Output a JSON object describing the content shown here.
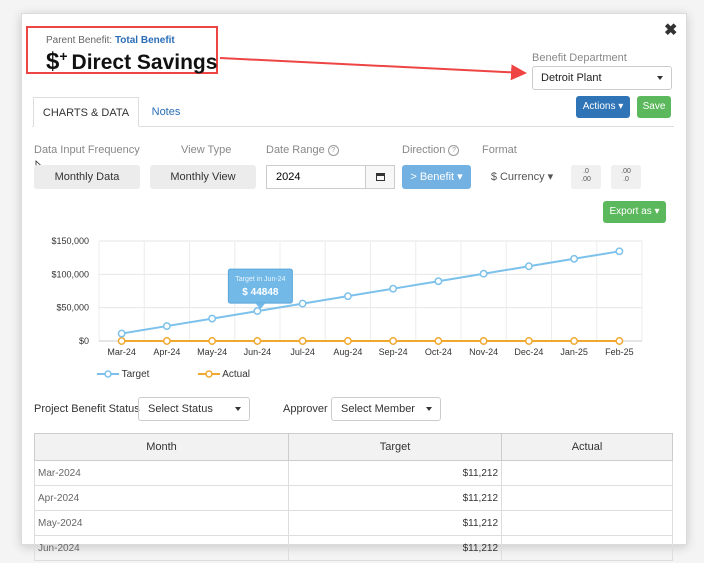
{
  "header": {
    "parent_benefit_label": "Parent Benefit:",
    "parent_benefit_link": "Total Benefit",
    "title": "Direct Savings",
    "title_symbol": "$",
    "title_symbol_plus": "+"
  },
  "department": {
    "label": "Benefit Department",
    "value": "Detroit Plant"
  },
  "buttons": {
    "actions": "Actions",
    "save": "Save",
    "export": "Export as"
  },
  "tabs": [
    {
      "label": "CHARTS & DATA",
      "active": true
    },
    {
      "label": "Notes",
      "active": false
    }
  ],
  "filters": {
    "data_input_frequency": {
      "label": "Data Input Frequency",
      "value": "Monthly Data"
    },
    "view_type": {
      "label": "View Type",
      "value": "Monthly View"
    },
    "date_range": {
      "label": "Date Range",
      "value": "2024"
    },
    "direction": {
      "label": "Direction",
      "value": "> Benefit"
    },
    "format": {
      "label": "Format",
      "value": "$ Currency"
    },
    "decimal_increase": ".0\n.00",
    "decimal_decrease": ".00\n.0",
    "help_glyph": "?"
  },
  "chart_data": {
    "type": "line",
    "categories": [
      "Mar-24",
      "Apr-24",
      "May-24",
      "Jun-24",
      "Jul-24",
      "Aug-24",
      "Sep-24",
      "Oct-24",
      "Nov-24",
      "Dec-24",
      "Jan-25",
      "Feb-25"
    ],
    "series": [
      {
        "name": "Target",
        "values": [
          11212,
          22424,
          33636,
          44848,
          56060,
          67272,
          78484,
          89696,
          100908,
          112120,
          123332,
          134544
        ],
        "color": "#7cc1eb"
      },
      {
        "name": "Actual",
        "values": [
          0,
          0,
          0,
          0,
          0,
          0,
          0,
          0,
          0,
          0,
          0,
          0
        ],
        "color": "#f0a830"
      }
    ],
    "ylim": [
      0,
      150000
    ],
    "yticks": [
      "$0",
      "$50,000",
      "$100,000",
      "$150,000"
    ],
    "tooltip": {
      "title": "Target in Jun-24",
      "value": "$ 44848",
      "index": 3
    },
    "grid": true,
    "legend": "bottom-left"
  },
  "project_status": {
    "label": "Project Benefit Status",
    "value": "Select Status"
  },
  "approver": {
    "label": "Approver",
    "value": "Select Member"
  },
  "table": {
    "headers": [
      "Month",
      "Target",
      "Actual"
    ],
    "rows": [
      [
        "Mar-2024",
        "$11,212",
        ""
      ],
      [
        "Apr-2024",
        "$11,212",
        ""
      ],
      [
        "May-2024",
        "$11,212",
        ""
      ],
      [
        "Jun-2024",
        "$11,212",
        ""
      ]
    ]
  }
}
